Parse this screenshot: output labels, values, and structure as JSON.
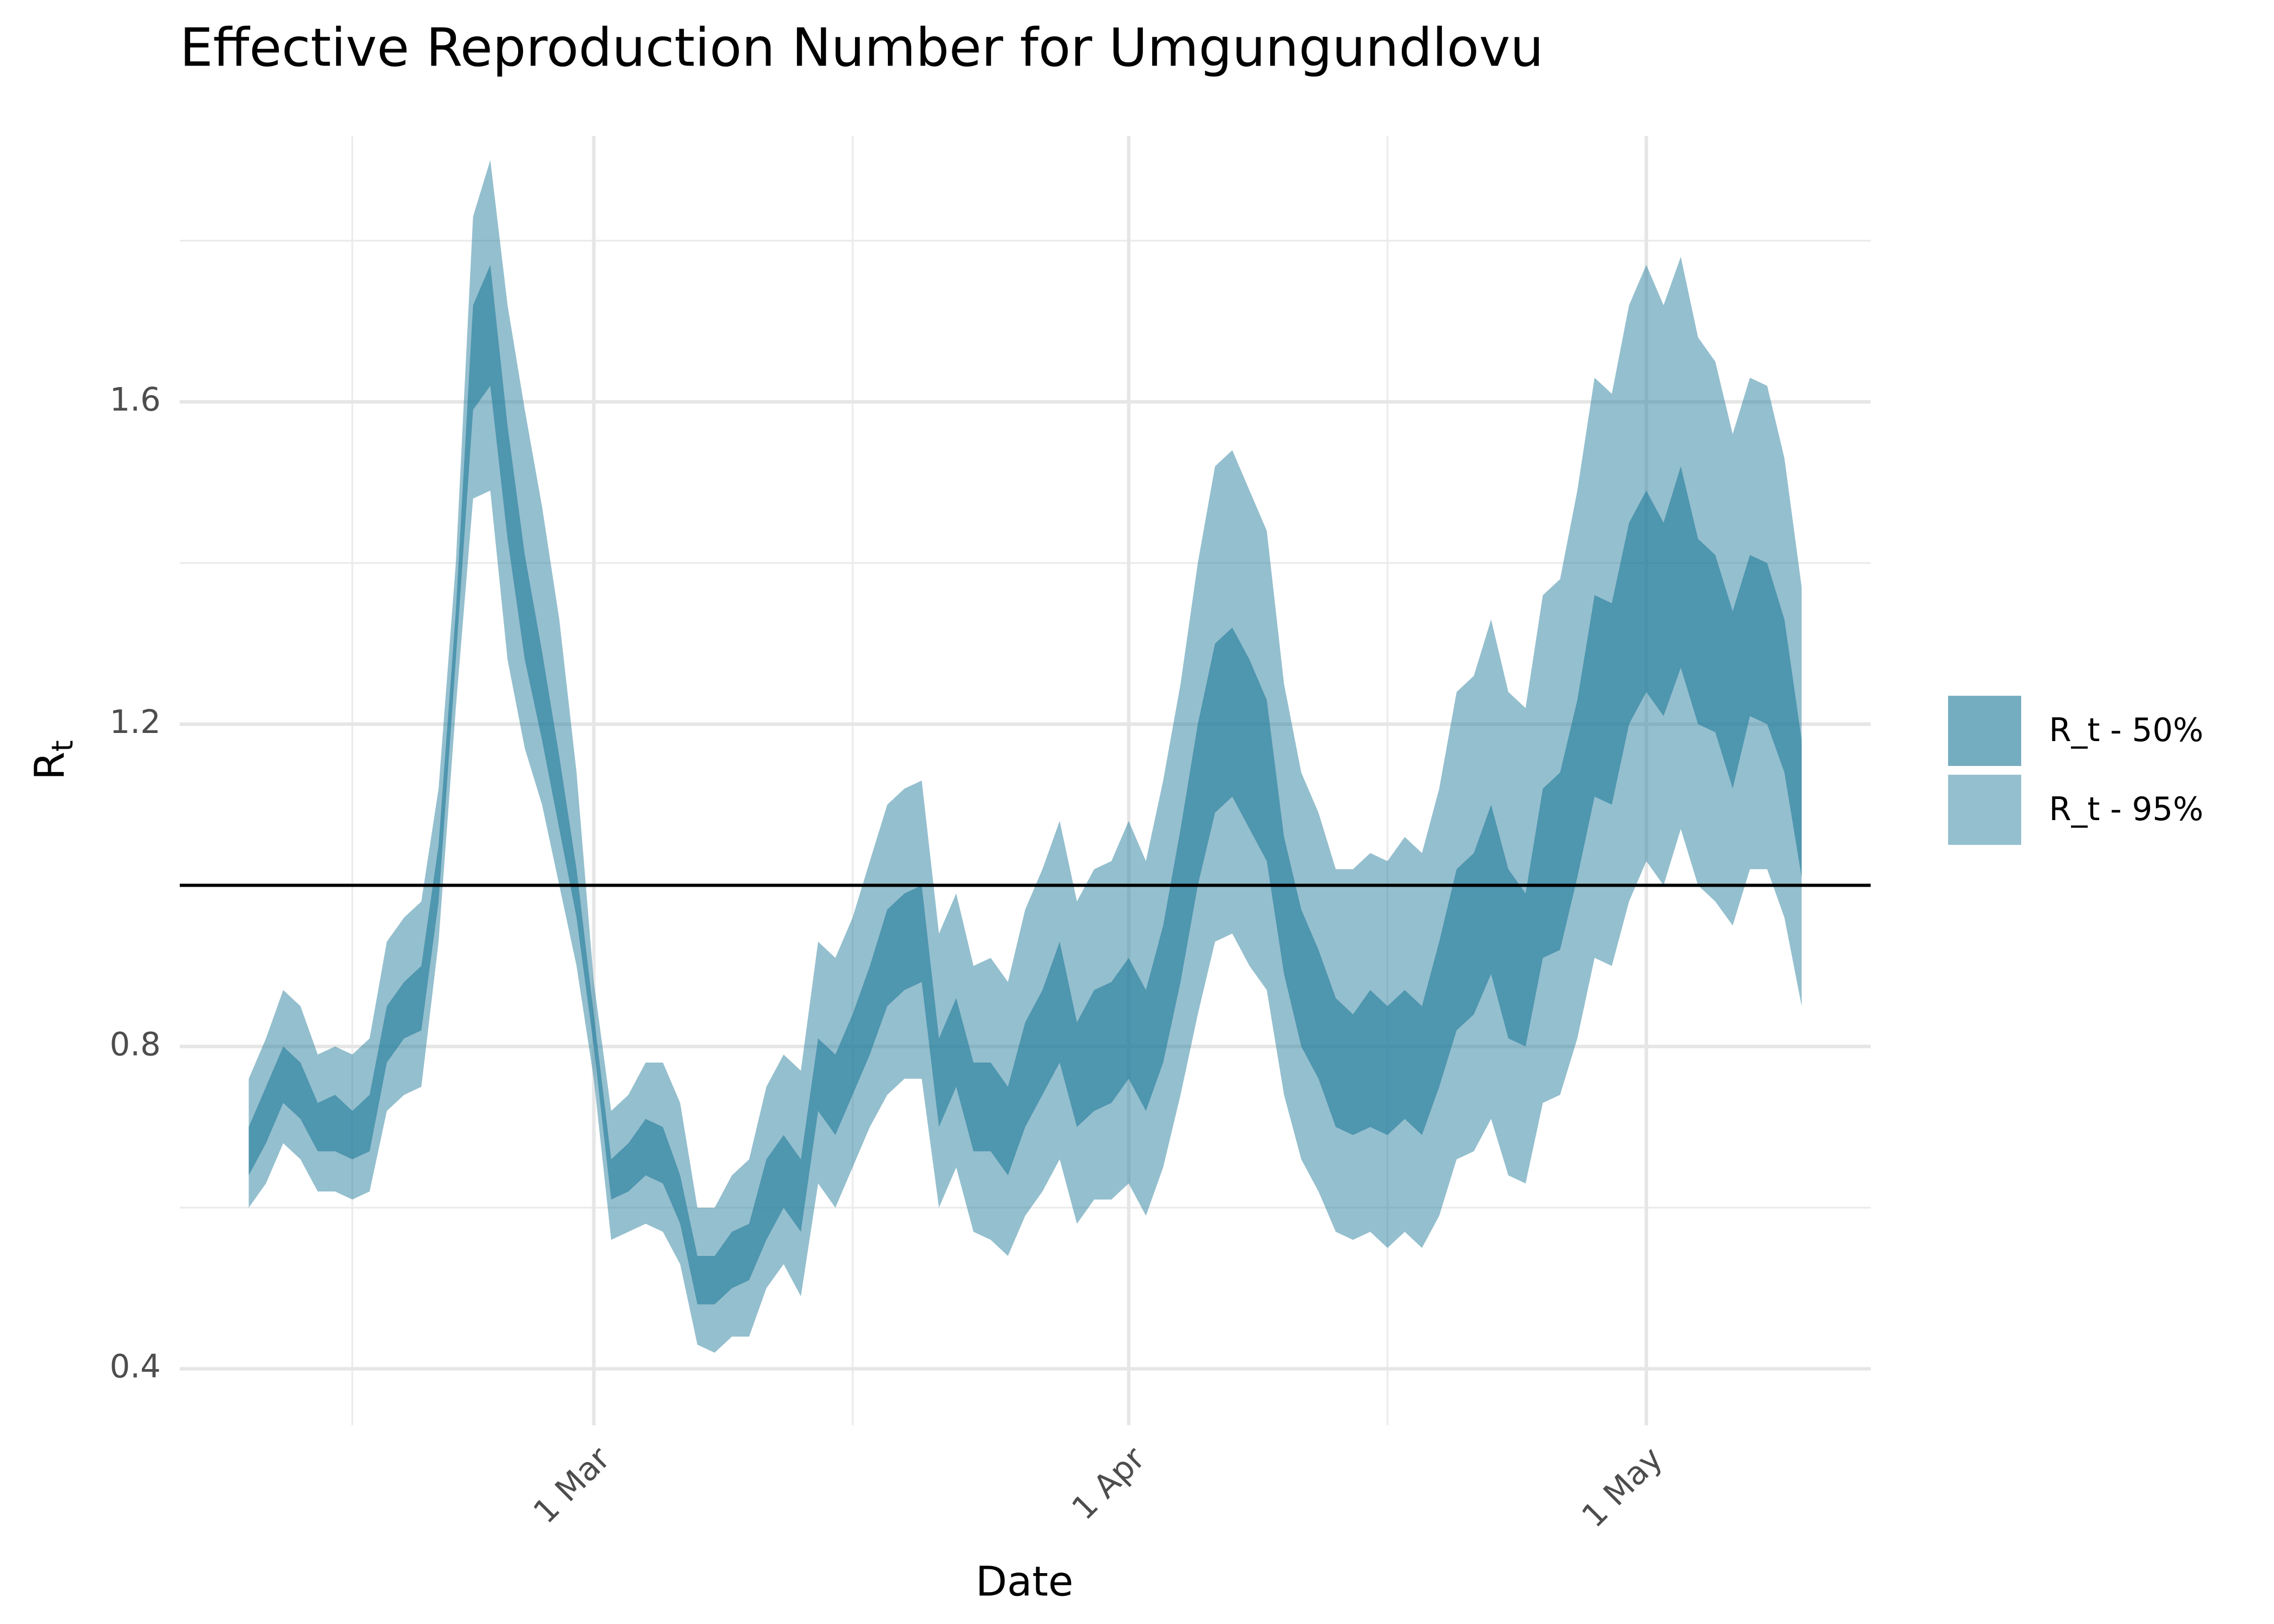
{
  "chart_data": {
    "type": "ribbon",
    "title": "Effective Reproduction Number for Umgungundlovu",
    "x_label": "Date",
    "y_label": {
      "base": "R",
      "subscript": "t"
    },
    "x": [
      "9 Feb",
      "10 Feb",
      "11 Feb",
      "12 Feb",
      "13 Feb",
      "14 Feb",
      "15 Feb",
      "16 Feb",
      "17 Feb",
      "18 Feb",
      "19 Feb",
      "20 Feb",
      "21 Feb",
      "22 Feb",
      "23 Feb",
      "24 Feb",
      "25 Feb",
      "26 Feb",
      "27 Feb",
      "28 Feb",
      "1 Mar",
      "2 Mar",
      "3 Mar",
      "4 Mar",
      "5 Mar",
      "6 Mar",
      "7 Mar",
      "8 Mar",
      "9 Mar",
      "10 Mar",
      "11 Mar",
      "12 Mar",
      "13 Mar",
      "14 Mar",
      "15 Mar",
      "16 Mar",
      "17 Mar",
      "18 Mar",
      "19 Mar",
      "20 Mar",
      "21 Mar",
      "22 Mar",
      "23 Mar",
      "24 Mar",
      "25 Mar",
      "26 Mar",
      "27 Mar",
      "28 Mar",
      "29 Mar",
      "30 Mar",
      "31 Mar",
      "1 Apr",
      "2 Apr",
      "3 Apr",
      "4 Apr",
      "5 Apr",
      "6 Apr",
      "7 Apr",
      "8 Apr",
      "9 Apr",
      "10 Apr",
      "11 Apr",
      "12 Apr",
      "13 Apr",
      "14 Apr",
      "15 Apr",
      "16 Apr",
      "17 Apr",
      "18 Apr",
      "19 Apr",
      "20 Apr",
      "21 Apr",
      "22 Apr",
      "23 Apr",
      "24 Apr",
      "25 Apr",
      "26 Apr",
      "27 Apr",
      "28 Apr",
      "29 Apr",
      "30 Apr",
      "1 May",
      "2 May",
      "3 May",
      "4 May",
      "5 May",
      "6 May",
      "7 May",
      "8 May",
      "9 May",
      "10 May"
    ],
    "series": [
      {
        "name": "R_t - 95%",
        "color": "#2a7f9e",
        "opacity": 0.5,
        "lower": [
          0.6,
          0.63,
          0.68,
          0.66,
          0.62,
          0.62,
          0.61,
          0.62,
          0.72,
          0.74,
          0.75,
          0.93,
          1.22,
          1.48,
          1.49,
          1.28,
          1.17,
          1.1,
          1.0,
          0.9,
          0.76,
          0.56,
          0.57,
          0.58,
          0.57,
          0.53,
          0.43,
          0.42,
          0.44,
          0.44,
          0.5,
          0.53,
          0.49,
          0.63,
          0.6,
          0.65,
          0.7,
          0.74,
          0.76,
          0.76,
          0.6,
          0.65,
          0.57,
          0.56,
          0.54,
          0.59,
          0.62,
          0.66,
          0.58,
          0.61,
          0.61,
          0.63,
          0.59,
          0.65,
          0.74,
          0.84,
          0.93,
          0.94,
          0.9,
          0.87,
          0.74,
          0.66,
          0.62,
          0.57,
          0.56,
          0.57,
          0.55,
          0.57,
          0.55,
          0.59,
          0.66,
          0.67,
          0.71,
          0.64,
          0.63,
          0.73,
          0.74,
          0.81,
          0.91,
          0.9,
          0.98,
          1.03,
          1.0,
          1.07,
          1.0,
          0.98,
          0.95,
          1.02,
          1.02,
          0.96,
          0.85
        ],
        "upper": [
          0.76,
          0.81,
          0.87,
          0.85,
          0.79,
          0.8,
          0.79,
          0.81,
          0.93,
          0.96,
          0.98,
          1.12,
          1.4,
          1.83,
          1.9,
          1.72,
          1.59,
          1.47,
          1.33,
          1.14,
          0.88,
          0.72,
          0.74,
          0.78,
          0.78,
          0.73,
          0.6,
          0.6,
          0.64,
          0.66,
          0.75,
          0.79,
          0.77,
          0.93,
          0.91,
          0.96,
          1.03,
          1.1,
          1.12,
          1.13,
          0.94,
          0.99,
          0.9,
          0.91,
          0.88,
          0.97,
          1.02,
          1.08,
          0.98,
          1.02,
          1.03,
          1.08,
          1.03,
          1.13,
          1.25,
          1.4,
          1.52,
          1.54,
          1.49,
          1.44,
          1.25,
          1.14,
          1.09,
          1.02,
          1.02,
          1.04,
          1.03,
          1.06,
          1.04,
          1.12,
          1.24,
          1.26,
          1.33,
          1.24,
          1.22,
          1.36,
          1.38,
          1.49,
          1.63,
          1.61,
          1.72,
          1.77,
          1.72,
          1.78,
          1.68,
          1.65,
          1.56,
          1.63,
          1.62,
          1.53,
          1.37
        ]
      },
      {
        "name": "R_t - 50%",
        "color": "#2a7f9e",
        "opacity": 0.65,
        "lower": [
          0.64,
          0.68,
          0.73,
          0.71,
          0.67,
          0.67,
          0.66,
          0.67,
          0.78,
          0.81,
          0.82,
          0.98,
          1.28,
          1.59,
          1.62,
          1.43,
          1.28,
          1.18,
          1.07,
          0.96,
          0.8,
          0.61,
          0.62,
          0.64,
          0.63,
          0.58,
          0.48,
          0.48,
          0.5,
          0.51,
          0.56,
          0.6,
          0.57,
          0.72,
          0.69,
          0.74,
          0.79,
          0.85,
          0.87,
          0.88,
          0.7,
          0.75,
          0.67,
          0.67,
          0.64,
          0.7,
          0.74,
          0.78,
          0.7,
          0.72,
          0.73,
          0.76,
          0.72,
          0.78,
          0.88,
          1.0,
          1.09,
          1.11,
          1.07,
          1.03,
          0.89,
          0.8,
          0.76,
          0.7,
          0.69,
          0.7,
          0.69,
          0.71,
          0.69,
          0.75,
          0.82,
          0.84,
          0.89,
          0.81,
          0.8,
          0.91,
          0.92,
          1.01,
          1.11,
          1.1,
          1.2,
          1.24,
          1.21,
          1.27,
          1.2,
          1.19,
          1.12,
          1.21,
          1.2,
          1.14,
          1.01
        ],
        "upper": [
          0.7,
          0.75,
          0.8,
          0.78,
          0.73,
          0.74,
          0.72,
          0.74,
          0.85,
          0.88,
          0.9,
          1.05,
          1.34,
          1.72,
          1.77,
          1.57,
          1.41,
          1.29,
          1.16,
          1.02,
          0.84,
          0.66,
          0.68,
          0.71,
          0.7,
          0.64,
          0.54,
          0.54,
          0.57,
          0.58,
          0.66,
          0.69,
          0.66,
          0.81,
          0.79,
          0.84,
          0.9,
          0.97,
          0.99,
          1.0,
          0.81,
          0.86,
          0.78,
          0.78,
          0.75,
          0.83,
          0.87,
          0.93,
          0.83,
          0.87,
          0.88,
          0.91,
          0.87,
          0.95,
          1.07,
          1.2,
          1.3,
          1.32,
          1.28,
          1.23,
          1.06,
          0.97,
          0.92,
          0.86,
          0.84,
          0.87,
          0.85,
          0.87,
          0.85,
          0.93,
          1.02,
          1.04,
          1.1,
          1.02,
          0.99,
          1.12,
          1.14,
          1.23,
          1.36,
          1.35,
          1.45,
          1.49,
          1.45,
          1.52,
          1.43,
          1.41,
          1.34,
          1.41,
          1.4,
          1.33,
          1.18
        ]
      }
    ],
    "hline": 1,
    "xlim": [
      "5 Feb",
      "14 May"
    ],
    "xticks": [
      "1 Mar",
      "1 Apr",
      "1 May"
    ],
    "x_minor_ticks": [
      "15 Feb",
      "16 Mar",
      "16 Apr"
    ],
    "ylim": [
      0.33,
      1.93
    ],
    "yticks": [
      0.4,
      0.8,
      1.2,
      1.6
    ],
    "y_minor_ticks": [
      0.6,
      1,
      1.4,
      1.8
    ],
    "grid": true,
    "legend_position": "right"
  }
}
